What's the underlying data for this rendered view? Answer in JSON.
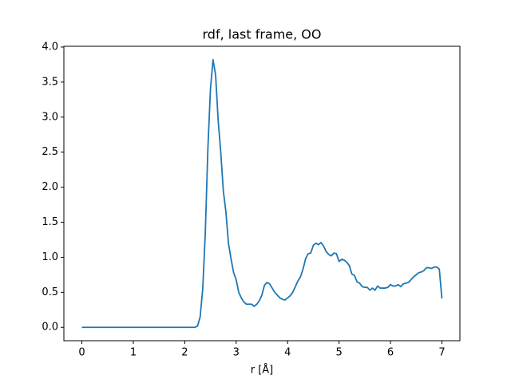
{
  "chart_data": {
    "type": "line",
    "title": "rdf, last frame, OO",
    "xlabel": "r [Å]",
    "color": "#1f77b4",
    "x": [
      0,
      0.5,
      1.0,
      1.5,
      2.0,
      2.2,
      2.25,
      2.3,
      2.35,
      2.4,
      2.45,
      2.5,
      2.55,
      2.6,
      2.65,
      2.7,
      2.75,
      2.8,
      2.85,
      2.9,
      2.95,
      3.0,
      3.05,
      3.1,
      3.15,
      3.2,
      3.25,
      3.3,
      3.35,
      3.4,
      3.45,
      3.5,
      3.55,
      3.6,
      3.65,
      3.7,
      3.75,
      3.8,
      3.85,
      3.9,
      3.95,
      4.0,
      4.05,
      4.1,
      4.15,
      4.2,
      4.25,
      4.3,
      4.35,
      4.4,
      4.45,
      4.5,
      4.55,
      4.6,
      4.65,
      4.7,
      4.75,
      4.8,
      4.85,
      4.9,
      4.95,
      5.0,
      5.05,
      5.1,
      5.15,
      5.2,
      5.25,
      5.3,
      5.35,
      5.4,
      5.45,
      5.5,
      5.55,
      5.6,
      5.65,
      5.7,
      5.75,
      5.8,
      5.85,
      5.9,
      5.95,
      6.0,
      6.05,
      6.1,
      6.15,
      6.2,
      6.25,
      6.3,
      6.35,
      6.4,
      6.45,
      6.5,
      6.55,
      6.6,
      6.65,
      6.7,
      6.75,
      6.8,
      6.85,
      6.9,
      6.95,
      7.0
    ],
    "values": [
      0,
      0,
      0,
      0,
      0,
      0,
      0.02,
      0.15,
      0.55,
      1.35,
      2.55,
      3.4,
      3.82,
      3.6,
      2.95,
      2.5,
      1.95,
      1.65,
      1.2,
      0.98,
      0.78,
      0.68,
      0.5,
      0.42,
      0.36,
      0.33,
      0.33,
      0.33,
      0.3,
      0.33,
      0.38,
      0.46,
      0.6,
      0.64,
      0.62,
      0.56,
      0.5,
      0.46,
      0.42,
      0.4,
      0.39,
      0.42,
      0.45,
      0.5,
      0.58,
      0.66,
      0.72,
      0.83,
      0.98,
      1.05,
      1.06,
      1.17,
      1.2,
      1.18,
      1.21,
      1.16,
      1.08,
      1.04,
      1.02,
      1.06,
      1.05,
      0.94,
      0.97,
      0.96,
      0.93,
      0.88,
      0.76,
      0.74,
      0.65,
      0.63,
      0.58,
      0.57,
      0.57,
      0.53,
      0.56,
      0.53,
      0.59,
      0.56,
      0.56,
      0.56,
      0.57,
      0.61,
      0.59,
      0.59,
      0.61,
      0.58,
      0.62,
      0.63,
      0.64,
      0.68,
      0.72,
      0.75,
      0.78,
      0.79,
      0.81,
      0.85,
      0.85,
      0.84,
      0.86,
      0.86,
      0.83,
      0.41
    ],
    "xlim": [
      -0.35,
      7.35
    ],
    "xticks": [
      0,
      1,
      2,
      3,
      4,
      5,
      6,
      7
    ],
    "ylim": [
      -0.191,
      4.011
    ],
    "yticks": [
      {
        "value": 0,
        "label": "0.0"
      },
      {
        "value": 0.5,
        "label": "0.5"
      },
      {
        "value": 1,
        "label": "1.0"
      },
      {
        "value": 1.5,
        "label": "1.5"
      },
      {
        "value": 2,
        "label": "2.0"
      },
      {
        "value": 2.5,
        "label": "2.5"
      },
      {
        "value": 3,
        "label": "3.0"
      },
      {
        "value": 3.5,
        "label": "3.5"
      },
      {
        "value": 4,
        "label": "4.0"
      }
    ]
  }
}
